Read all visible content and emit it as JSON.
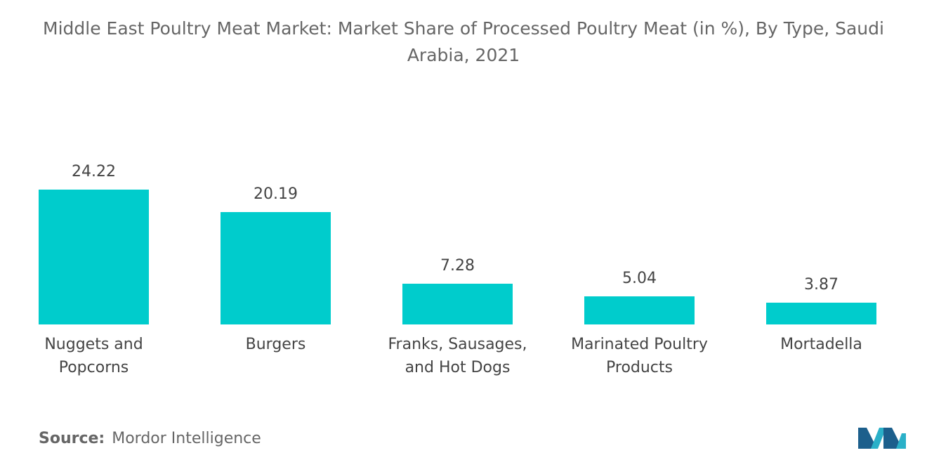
{
  "chart_data": {
    "type": "bar",
    "title": "Middle East Poultry Meat Market: Market Share of Processed Poultry Meat (in %), By Type, Saudi Arabia, 2021",
    "categories": [
      "Nuggets and Popcorns",
      "Burgers",
      "Franks, Sausages, and Hot Dogs",
      "Marinated Poultry Products",
      "Mortadella"
    ],
    "values": [
      24.22,
      20.19,
      7.28,
      5.04,
      3.87
    ],
    "color": "#00cccc",
    "source_label": "Source:",
    "source": "Mordor Intelligence"
  }
}
